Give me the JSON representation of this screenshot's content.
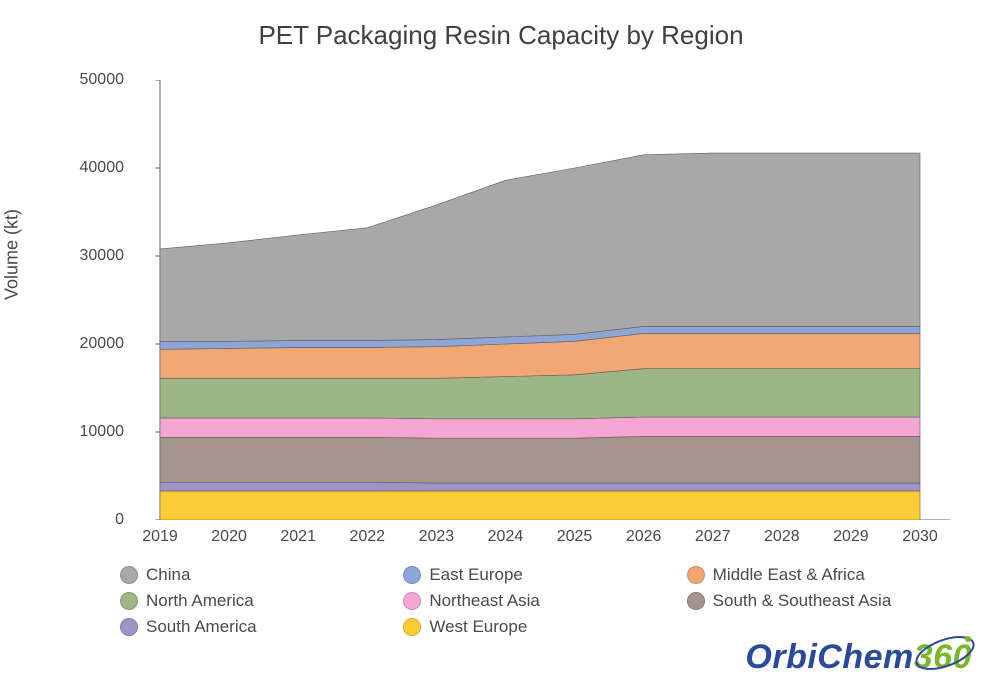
{
  "chart": {
    "type": "area",
    "title": "PET Packaging Resin Capacity by Region",
    "title_fontsize": 26,
    "ylabel": "Volume (kt)",
    "ylabel_fontsize": 18,
    "xlim": [
      2019,
      2030
    ],
    "ylim": [
      0,
      50000
    ],
    "ytick_step": 10000,
    "yticks": [
      0,
      10000,
      20000,
      30000,
      40000,
      50000
    ],
    "xticks": [
      2019,
      2020,
      2021,
      2022,
      2023,
      2024,
      2025,
      2026,
      2027,
      2028,
      2029,
      2030
    ],
    "xtick_labels": [
      "2019",
      "2020",
      "2021",
      "2022",
      "2023",
      "2024",
      "2025",
      "2026",
      "2027",
      "2028",
      "2029",
      "2030"
    ],
    "background_color": "#ffffff",
    "axis_color": "#666666",
    "tick_font_size": 16,
    "stack_order_bottom_to_top": [
      "West Europe",
      "South America",
      "South & Southeast Asia",
      "Northeast Asia",
      "North America",
      "Middle East & Africa",
      "East Europe",
      "China"
    ],
    "series": {
      "West Europe": {
        "color": "#fccc37",
        "values": [
          3300,
          3300,
          3300,
          3300,
          3300,
          3300,
          3300,
          3300,
          3300,
          3300,
          3300,
          3300
        ]
      },
      "South America": {
        "color": "#a392c6",
        "values": [
          1000,
          1000,
          1000,
          1000,
          900,
          900,
          900,
          900,
          900,
          900,
          900,
          900
        ]
      },
      "South & Southeast Asia": {
        "color": "#a6958e",
        "values": [
          5100,
          5100,
          5100,
          5100,
          5100,
          5100,
          5100,
          5300,
          5300,
          5300,
          5300,
          5300
        ]
      },
      "Northeast Asia": {
        "color": "#f5a5d2",
        "values": [
          2200,
          2200,
          2200,
          2200,
          2200,
          2200,
          2200,
          2200,
          2200,
          2200,
          2200,
          2200
        ]
      },
      "North America": {
        "color": "#9db686",
        "values": [
          4500,
          4500,
          4500,
          4500,
          4600,
          4800,
          5000,
          5500,
          5500,
          5500,
          5500,
          5500
        ]
      },
      "Middle East & Africa": {
        "color": "#f0a774",
        "values": [
          3300,
          3400,
          3500,
          3500,
          3600,
          3700,
          3800,
          4000,
          4000,
          4000,
          4000,
          4000
        ]
      },
      "East Europe": {
        "color": "#8ea5d8",
        "values": [
          900,
          800,
          800,
          800,
          800,
          800,
          800,
          800,
          800,
          800,
          800,
          800
        ]
      },
      "China": {
        "color": "#a8a8a8",
        "values": [
          10500,
          11200,
          12000,
          12800,
          15300,
          17800,
          18900,
          19500,
          19700,
          19700,
          19700,
          19700
        ]
      }
    },
    "legend": {
      "columns": 3,
      "position": "bottom",
      "items": [
        {
          "label": "China",
          "color": "#a8a8a8"
        },
        {
          "label": "East Europe",
          "color": "#8ea5d8"
        },
        {
          "label": "Middle East & Africa",
          "color": "#f0a774"
        },
        {
          "label": "North America",
          "color": "#9db686"
        },
        {
          "label": "Northeast Asia",
          "color": "#f5a5d2"
        },
        {
          "label": "South & Southeast Asia",
          "color": "#a6958e"
        },
        {
          "label": "South America",
          "color": "#a392c6"
        },
        {
          "label": "West Europe",
          "color": "#fccc37"
        }
      ]
    },
    "area_stroke_color": "#5e5e5e",
    "area_stroke_width": 0.6
  },
  "logo": {
    "text_parts": {
      "orbi": "Orbi",
      "chem": "Chem",
      "n360": "360"
    },
    "orbi_color": "#2b4a9b",
    "chem_color": "#2b4a9b",
    "n360_color": "#7ab829"
  }
}
